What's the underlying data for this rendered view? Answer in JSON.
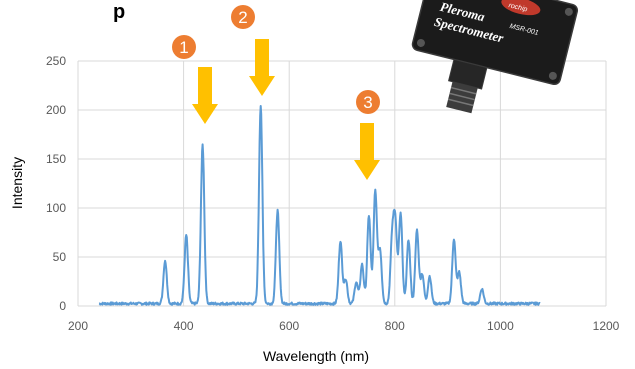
{
  "title_fragment": "p",
  "device": {
    "brand": "rochip",
    "name_line1": "Pleroma",
    "name_line2": "Spectrometer",
    "model": "MSR-001"
  },
  "chart_data": {
    "type": "line",
    "title": "",
    "xlabel": "Wavelength (nm)",
    "ylabel": "Intensity",
    "xlim": [
      200,
      1200
    ],
    "ylim": [
      0,
      250
    ],
    "x_ticks": [
      200,
      400,
      600,
      800,
      1000,
      1200
    ],
    "y_ticks": [
      0,
      50,
      100,
      150,
      200,
      250
    ],
    "grid": "vertical and horizontal major gridlines",
    "line_color": "#5b9bd5",
    "peaks": [
      {
        "x": 365,
        "y": 44
      },
      {
        "x": 405,
        "y": 70
      },
      {
        "x": 436,
        "y": 162
      },
      {
        "x": 546,
        "y": 202
      },
      {
        "x": 578,
        "y": 95
      },
      {
        "x": 697,
        "y": 64
      },
      {
        "x": 707,
        "y": 25
      },
      {
        "x": 727,
        "y": 22
      },
      {
        "x": 738,
        "y": 40
      },
      {
        "x": 751,
        "y": 90
      },
      {
        "x": 763,
        "y": 115
      },
      {
        "x": 772,
        "y": 55
      },
      {
        "x": 795,
        "y": 65
      },
      {
        "x": 801,
        "y": 80
      },
      {
        "x": 811,
        "y": 92
      },
      {
        "x": 826,
        "y": 65
      },
      {
        "x": 842,
        "y": 75
      },
      {
        "x": 852,
        "y": 30
      },
      {
        "x": 866,
        "y": 28
      },
      {
        "x": 912,
        "y": 66
      },
      {
        "x": 922,
        "y": 32
      },
      {
        "x": 965,
        "y": 15
      }
    ],
    "annotations": [
      {
        "label": "1",
        "points_to_x": 436
      },
      {
        "label": "2",
        "points_to_x": 546
      },
      {
        "label": "3",
        "points_to_x": 751
      }
    ]
  },
  "colors": {
    "arrow": "#ffc000",
    "badge": "#ed7d31",
    "grid": "#d9d9d9"
  }
}
